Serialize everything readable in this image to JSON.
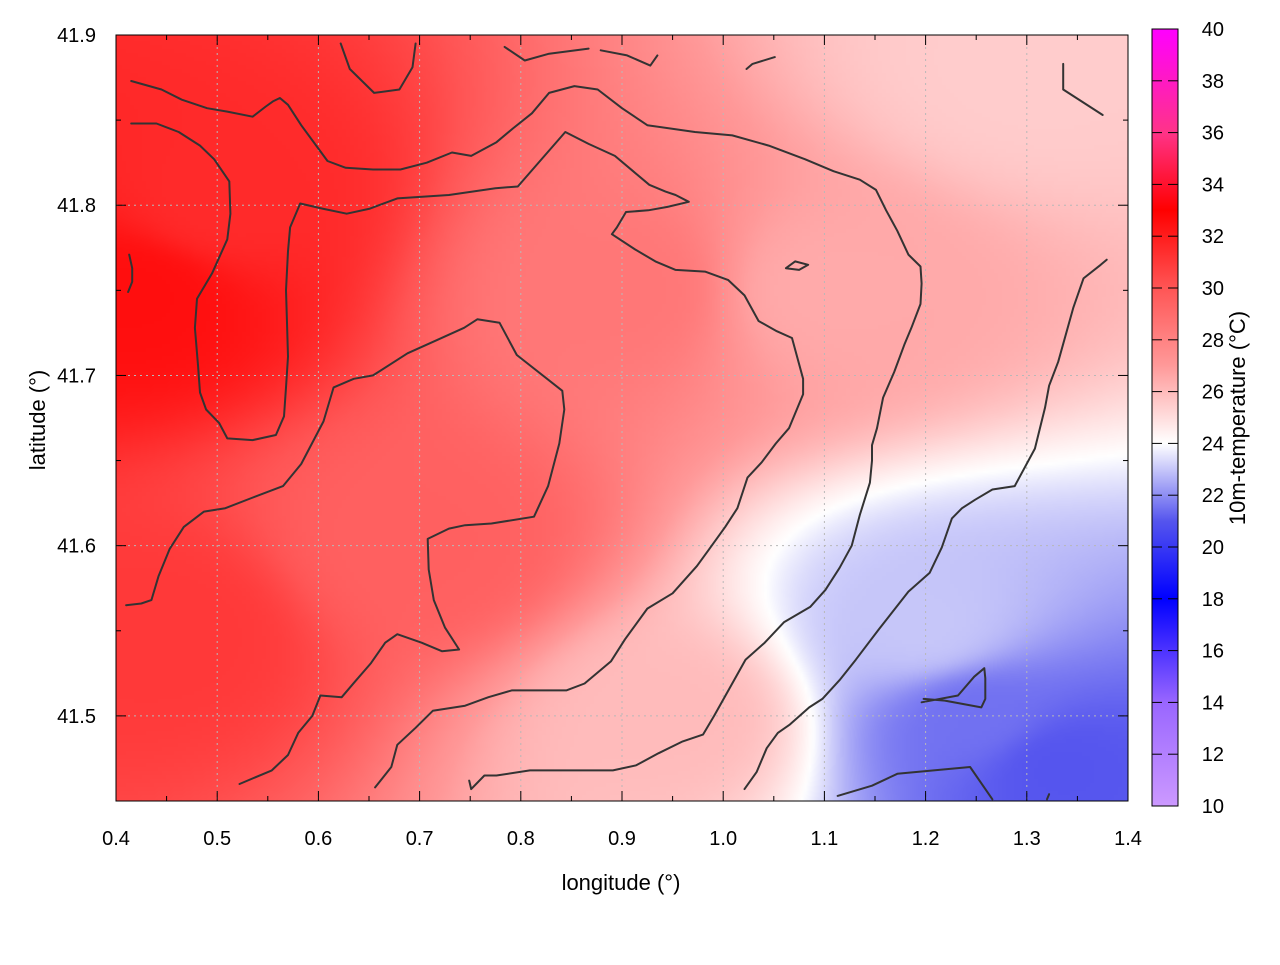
{
  "chart_data": {
    "type": "heatmap",
    "title": "",
    "xlabel": "longitude (°)",
    "ylabel": "latitude (°)",
    "colorbar_label": "10m-temperature (°C)",
    "xlim": [
      0.4,
      1.4
    ],
    "ylim": [
      41.45,
      41.9
    ],
    "x_ticks": [
      "0.4",
      "0.5",
      "0.6",
      "0.7",
      "0.8",
      "0.9",
      "1.0",
      "1.1",
      "1.2",
      "1.3",
      "1.4"
    ],
    "y_ticks": [
      "41.5",
      "41.6",
      "41.7",
      "41.8",
      "41.9"
    ],
    "colorbar_range": [
      10,
      40
    ],
    "colorbar_ticks": [
      "10",
      "12",
      "14",
      "16",
      "18",
      "20",
      "22",
      "24",
      "26",
      "28",
      "30",
      "32",
      "34",
      "36",
      "38",
      "40"
    ],
    "colorbar_stops": [
      {
        "value": 10,
        "color": "#cc99ff"
      },
      {
        "value": 14,
        "color": "#9966ff"
      },
      {
        "value": 18,
        "color": "#0000ff"
      },
      {
        "value": 21,
        "color": "#5555ee"
      },
      {
        "value": 24,
        "color": "#ffffff"
      },
      {
        "value": 27,
        "color": "#ff9999"
      },
      {
        "value": 30,
        "color": "#ff5555"
      },
      {
        "value": 33,
        "color": "#ff0000"
      },
      {
        "value": 36,
        "color": "#ff3388"
      },
      {
        "value": 40,
        "color": "#ff00ff"
      }
    ],
    "temperature_field": {
      "description_points": [
        {
          "lon": 0.42,
          "lat": 41.75,
          "temp": 32.5
        },
        {
          "lon": 0.5,
          "lat": 41.8,
          "temp": 31.5
        },
        {
          "lon": 0.45,
          "lat": 41.55,
          "temp": 31.0
        },
        {
          "lon": 0.7,
          "lat": 41.6,
          "temp": 29.5
        },
        {
          "lon": 0.9,
          "lat": 41.75,
          "temp": 28.5
        },
        {
          "lon": 1.1,
          "lat": 41.75,
          "temp": 26.5
        },
        {
          "lon": 1.3,
          "lat": 41.88,
          "temp": 25.5
        },
        {
          "lon": 1.2,
          "lat": 41.55,
          "temp": 23.0
        },
        {
          "lon": 1.25,
          "lat": 41.5,
          "temp": 21.5
        },
        {
          "lon": 1.33,
          "lat": 41.47,
          "temp": 21.0
        },
        {
          "lon": 0.95,
          "lat": 41.5,
          "temp": 26.0
        }
      ]
    },
    "contours": [
      {
        "points": [
          [
            0.415,
            41.873
          ],
          [
            0.445,
            41.868
          ],
          [
            0.465,
            41.862
          ],
          [
            0.49,
            41.857
          ],
          [
            0.51,
            41.855
          ],
          [
            0.535,
            41.852
          ],
          [
            0.548,
            41.858
          ],
          [
            0.555,
            41.861
          ],
          [
            0.562,
            41.863
          ],
          [
            0.57,
            41.859
          ],
          [
            0.583,
            41.847
          ],
          [
            0.609,
            41.826
          ],
          [
            0.627,
            41.822
          ],
          [
            0.654,
            41.821
          ],
          [
            0.681,
            41.821
          ],
          [
            0.707,
            41.825
          ],
          [
            0.732,
            41.831
          ],
          [
            0.751,
            41.829
          ],
          [
            0.776,
            41.837
          ],
          [
            0.792,
            41.845
          ],
          [
            0.811,
            41.854
          ],
          [
            0.828,
            41.866
          ],
          [
            0.853,
            41.87
          ],
          [
            0.876,
            41.868
          ],
          [
            0.9,
            41.857
          ],
          [
            0.925,
            41.847
          ],
          [
            0.972,
            41.843
          ],
          [
            1.009,
            41.841
          ],
          [
            1.045,
            41.835
          ],
          [
            1.081,
            41.827
          ],
          [
            1.109,
            41.82
          ],
          [
            1.135,
            41.815
          ],
          [
            1.151,
            41.809
          ],
          [
            1.161,
            41.797
          ],
          [
            1.172,
            41.785
          ],
          [
            1.183,
            41.771
          ],
          [
            1.195,
            41.764
          ],
          [
            1.196,
            41.754
          ],
          [
            1.195,
            41.742
          ],
          [
            1.186,
            41.728
          ],
          [
            1.179,
            41.718
          ],
          [
            1.169,
            41.702
          ],
          [
            1.158,
            41.687
          ],
          [
            1.152,
            41.669
          ],
          [
            1.147,
            41.659
          ],
          [
            1.147,
            41.65
          ],
          [
            1.145,
            41.637
          ],
          [
            1.135,
            41.618
          ],
          [
            1.127,
            41.6
          ],
          [
            1.115,
            41.587
          ],
          [
            1.101,
            41.574
          ],
          [
            1.086,
            41.564
          ],
          [
            1.06,
            41.555
          ],
          [
            1.041,
            41.543
          ],
          [
            1.022,
            41.533
          ],
          [
            1.006,
            41.516
          ],
          [
            0.991,
            41.5
          ],
          [
            0.98,
            41.489
          ],
          [
            0.96,
            41.485
          ],
          [
            0.936,
            41.478
          ],
          [
            0.914,
            41.471
          ],
          [
            0.891,
            41.468
          ],
          [
            0.85,
            41.468
          ],
          [
            0.809,
            41.468
          ],
          [
            0.776,
            41.465
          ],
          [
            0.764,
            41.465
          ],
          [
            0.751,
            41.457
          ],
          [
            0.749,
            41.462
          ]
        ]
      },
      {
        "points": [
          [
            0.41,
            41.565
          ],
          [
            0.425,
            41.566
          ],
          [
            0.435,
            41.568
          ],
          [
            0.442,
            41.582
          ],
          [
            0.453,
            41.598
          ],
          [
            0.467,
            41.611
          ],
          [
            0.487,
            41.62
          ],
          [
            0.508,
            41.622
          ],
          [
            0.534,
            41.628
          ],
          [
            0.565,
            41.635
          ],
          [
            0.583,
            41.648
          ],
          [
            0.605,
            41.673
          ],
          [
            0.615,
            41.693
          ],
          [
            0.635,
            41.698
          ],
          [
            0.654,
            41.7
          ],
          [
            0.688,
            41.713
          ],
          [
            0.718,
            41.721
          ],
          [
            0.744,
            41.728
          ],
          [
            0.757,
            41.733
          ],
          [
            0.779,
            41.731
          ],
          [
            0.796,
            41.712
          ],
          [
            0.841,
            41.691
          ],
          [
            0.843,
            41.68
          ],
          [
            0.838,
            41.66
          ],
          [
            0.827,
            41.635
          ],
          [
            0.813,
            41.617
          ],
          [
            0.771,
            41.613
          ],
          [
            0.745,
            41.612
          ],
          [
            0.729,
            41.61
          ],
          [
            0.708,
            41.604
          ],
          [
            0.709,
            41.586
          ],
          [
            0.714,
            41.568
          ],
          [
            0.725,
            41.552
          ],
          [
            0.739,
            41.539
          ],
          [
            0.722,
            41.538
          ],
          [
            0.702,
            41.543
          ],
          [
            0.678,
            41.548
          ],
          [
            0.666,
            41.543
          ],
          [
            0.652,
            41.531
          ],
          [
            0.636,
            41.52
          ],
          [
            0.623,
            41.511
          ],
          [
            0.602,
            41.512
          ],
          [
            0.594,
            41.5
          ],
          [
            0.58,
            41.49
          ],
          [
            0.57,
            41.477
          ],
          [
            0.554,
            41.468
          ],
          [
            0.522,
            41.46
          ]
        ]
      },
      {
        "points": [
          [
            0.415,
            41.848
          ],
          [
            0.44,
            41.848
          ],
          [
            0.462,
            41.843
          ],
          [
            0.483,
            41.835
          ],
          [
            0.497,
            41.827
          ],
          [
            0.512,
            41.814
          ],
          [
            0.513,
            41.795
          ],
          [
            0.51,
            41.78
          ],
          [
            0.495,
            41.76
          ],
          [
            0.48,
            41.745
          ],
          [
            0.478,
            41.728
          ],
          [
            0.481,
            41.706
          ],
          [
            0.483,
            41.69
          ],
          [
            0.489,
            41.68
          ],
          [
            0.502,
            41.672
          ],
          [
            0.51,
            41.663
          ],
          [
            0.535,
            41.662
          ],
          [
            0.558,
            41.665
          ],
          [
            0.566,
            41.676
          ],
          [
            0.568,
            41.693
          ],
          [
            0.57,
            41.711
          ],
          [
            0.569,
            41.731
          ],
          [
            0.568,
            41.75
          ],
          [
            0.57,
            41.773
          ],
          [
            0.572,
            41.787
          ],
          [
            0.582,
            41.801
          ],
          [
            0.604,
            41.798
          ],
          [
            0.628,
            41.795
          ],
          [
            0.651,
            41.798
          ],
          [
            0.678,
            41.804
          ],
          [
            0.729,
            41.806
          ],
          [
            0.775,
            41.81
          ],
          [
            0.797,
            41.811
          ],
          [
            0.819,
            41.826
          ],
          [
            0.844,
            41.843
          ],
          [
            0.867,
            41.836
          ],
          [
            0.893,
            41.829
          ],
          [
            0.911,
            41.82
          ],
          [
            0.927,
            41.812
          ],
          [
            0.943,
            41.808
          ],
          [
            0.953,
            41.806
          ],
          [
            0.966,
            41.802
          ],
          [
            0.945,
            41.799
          ],
          [
            0.926,
            41.797
          ],
          [
            0.904,
            41.796
          ],
          [
            0.895,
            41.787
          ],
          [
            0.89,
            41.783
          ],
          [
            0.913,
            41.774
          ],
          [
            0.933,
            41.767
          ],
          [
            0.953,
            41.762
          ],
          [
            0.982,
            41.761
          ],
          [
            1.005,
            41.756
          ],
          [
            1.021,
            41.747
          ],
          [
            1.035,
            41.732
          ],
          [
            1.053,
            41.726
          ],
          [
            1.068,
            41.722
          ],
          [
            1.079,
            41.698
          ],
          [
            1.079,
            41.689
          ],
          [
            1.065,
            41.669
          ],
          [
            1.052,
            41.66
          ],
          [
            1.038,
            41.649
          ],
          [
            1.024,
            41.64
          ],
          [
            1.014,
            41.622
          ],
          [
            1.002,
            41.611
          ],
          [
            0.985,
            41.597
          ],
          [
            0.974,
            41.588
          ],
          [
            0.95,
            41.572
          ],
          [
            0.925,
            41.563
          ],
          [
            0.903,
            41.545
          ],
          [
            0.889,
            41.532
          ],
          [
            0.863,
            41.519
          ],
          [
            0.845,
            41.515
          ],
          [
            0.791,
            41.515
          ],
          [
            0.768,
            41.511
          ],
          [
            0.745,
            41.506
          ],
          [
            0.713,
            41.503
          ],
          [
            0.696,
            41.493
          ],
          [
            0.678,
            41.483
          ],
          [
            0.672,
            41.47
          ],
          [
            0.656,
            41.458
          ]
        ]
      },
      {
        "points": [
          [
            1.021,
            41.457
          ],
          [
            1.033,
            41.467
          ],
          [
            1.043,
            41.481
          ],
          [
            1.054,
            41.49
          ],
          [
            1.066,
            41.495
          ],
          [
            1.085,
            41.505
          ],
          [
            1.098,
            41.51
          ],
          [
            1.115,
            41.521
          ],
          [
            1.131,
            41.533
          ],
          [
            1.154,
            41.551
          ],
          [
            1.183,
            41.573
          ],
          [
            1.204,
            41.584
          ],
          [
            1.216,
            41.599
          ],
          [
            1.226,
            41.616
          ],
          [
            1.236,
            41.622
          ],
          [
            1.249,
            41.627
          ],
          [
            1.266,
            41.633
          ],
          [
            1.288,
            41.635
          ],
          [
            1.308,
            41.657
          ],
          [
            1.318,
            41.681
          ],
          [
            1.322,
            41.694
          ],
          [
            1.331,
            41.708
          ],
          [
            1.346,
            41.74
          ],
          [
            1.356,
            41.757
          ],
          [
            1.373,
            41.765
          ],
          [
            1.379,
            41.768
          ]
        ]
      },
      {
        "points": [
          [
            1.113,
            41.453
          ],
          [
            1.147,
            41.459
          ],
          [
            1.172,
            41.466
          ],
          [
            1.244,
            41.47
          ],
          [
            1.266,
            41.451
          ]
        ]
      },
      {
        "points": [
          [
            1.196,
            41.508
          ],
          [
            1.232,
            41.512
          ],
          [
            1.248,
            41.523
          ],
          [
            1.258,
            41.528
          ],
          [
            1.259,
            41.522
          ],
          [
            1.259,
            41.51
          ],
          [
            1.255,
            41.505
          ],
          [
            1.219,
            41.509
          ],
          [
            1.198,
            41.51
          ]
        ]
      },
      {
        "points": [
          [
            1.062,
            41.763
          ],
          [
            1.071,
            41.767
          ],
          [
            1.084,
            41.765
          ],
          [
            1.075,
            41.762
          ],
          [
            1.062,
            41.763
          ]
        ]
      },
      {
        "points": [
          [
            0.413,
            41.771
          ],
          [
            0.416,
            41.763
          ],
          [
            0.416,
            41.755
          ],
          [
            0.412,
            41.749
          ]
        ]
      },
      {
        "points": [
          [
            0.622,
            41.895
          ],
          [
            0.631,
            41.88
          ],
          [
            0.655,
            41.866
          ],
          [
            0.68,
            41.868
          ],
          [
            0.693,
            41.881
          ],
          [
            0.696,
            41.895
          ]
        ]
      },
      {
        "points": [
          [
            0.784,
            41.893
          ],
          [
            0.804,
            41.885
          ],
          [
            0.828,
            41.889
          ],
          [
            0.867,
            41.892
          ]
        ]
      },
      {
        "points": [
          [
            0.879,
            41.891
          ],
          [
            0.905,
            41.888
          ],
          [
            0.928,
            41.882
          ],
          [
            0.935,
            41.888
          ]
        ]
      },
      {
        "points": [
          [
            1.023,
            41.88
          ],
          [
            1.029,
            41.883
          ],
          [
            1.051,
            41.887
          ]
        ]
      },
      {
        "points": [
          [
            1.336,
            41.883
          ],
          [
            1.336,
            41.868
          ],
          [
            1.375,
            41.853
          ]
        ]
      },
      {
        "points": [
          [
            1.32,
            41.451
          ],
          [
            1.322,
            41.454
          ]
        ]
      }
    ]
  }
}
